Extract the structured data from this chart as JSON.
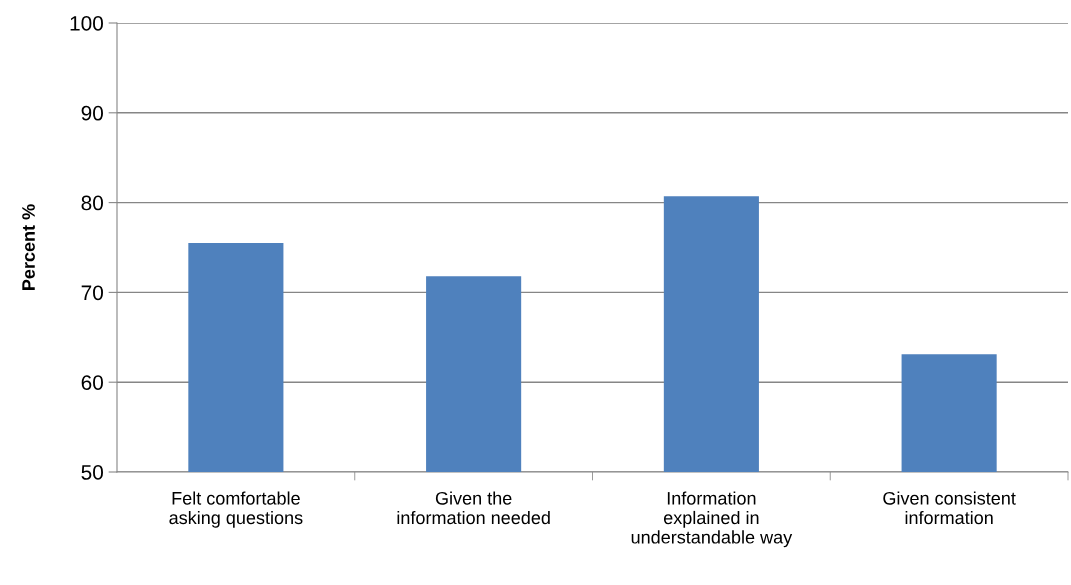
{
  "chart_data": {
    "type": "bar",
    "ylabel": "Percent %",
    "categories": [
      "Felt comfortable\nasking questions",
      "Given the\ninformation needed",
      "Information\nexplained in\nunderstandable way",
      "Given consistent\ninformation"
    ],
    "values": [
      75.5,
      71.8,
      80.7,
      63.1
    ],
    "color": "#4f81bd",
    "ylim": [
      50,
      100
    ],
    "yticks": [
      50,
      60,
      70,
      80,
      90,
      100
    ],
    "grid": "y"
  }
}
